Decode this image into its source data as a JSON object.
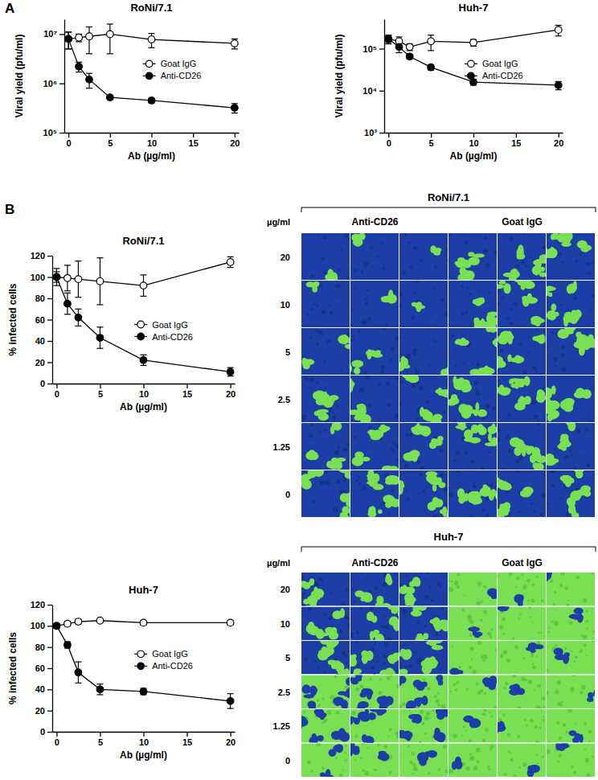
{
  "panel_labels": [
    "A",
    "B"
  ],
  "chart_data": [
    {
      "type": "line",
      "title": "RoNi/7.1",
      "x_label": "Ab (µg/ml)",
      "y_label": "Viral yield (pfu/ml)",
      "log": "y",
      "x": [
        0,
        1.25,
        2.5,
        5,
        10,
        20
      ],
      "xlim": [
        -0.5,
        20.5
      ],
      "xticks": [
        0,
        5,
        10,
        15,
        20
      ],
      "ylim": [
        100000,
        20000000
      ],
      "yticks": [
        {
          "value": 100000,
          "label": "10⁵"
        },
        {
          "value": 1000000,
          "label": "10⁶"
        },
        {
          "value": 10000000,
          "label": "10⁷"
        }
      ],
      "legend": "right",
      "series": [
        {
          "name": "Goat IgG",
          "color": "#000000",
          "marker": "open circle",
          "values": [
            8000000,
            8500000,
            9000000,
            10000000,
            7800000,
            6500000
          ],
          "errors": [
            3000000,
            1500000,
            5000000,
            6000000,
            2500000,
            1500000
          ]
        },
        {
          "name": "Anti-CD26",
          "color": "#000000",
          "marker": "filled circle",
          "values": [
            8000000,
            2200000,
            1200000,
            520000,
            450000,
            320000
          ],
          "errors": [
            3000000,
            500000,
            400000,
            50000,
            50000,
            70000
          ]
        }
      ]
    },
    {
      "type": "line",
      "title": "Huh-7",
      "x_label": "Ab (µg/ml)",
      "y_label": "Viral yield (pfu/ml)",
      "log": "y",
      "x": [
        0,
        1.25,
        2.5,
        5,
        10,
        20
      ],
      "xlim": [
        -0.5,
        20.5
      ],
      "xticks": [
        0,
        5,
        10,
        15,
        20
      ],
      "ylim": [
        1000,
        500000
      ],
      "yticks": [
        {
          "value": 1000,
          "label": "10³"
        },
        {
          "value": 10000,
          "label": "10⁴"
        },
        {
          "value": 100000,
          "label": "10⁵"
        }
      ],
      "legend": "right",
      "series": [
        {
          "name": "Goat IgG",
          "color": "#000000",
          "marker": "open circle",
          "values": [
            170000,
            150000,
            110000,
            150000,
            140000,
            280000
          ],
          "errors": [
            40000,
            40000,
            20000,
            60000,
            25000,
            80000
          ]
        },
        {
          "name": "Anti-CD26",
          "color": "#000000",
          "marker": "filled circle",
          "values": [
            170000,
            110000,
            65000,
            36000,
            16000,
            13500
          ],
          "errors": [
            30000,
            30000,
            8000,
            5000,
            2500,
            3000
          ]
        }
      ]
    },
    {
      "type": "line",
      "title": "RoNi/7.1",
      "x_label": "Ab (µg/ml)",
      "y_label": "% infected cells",
      "x": [
        0,
        1.25,
        2.5,
        5,
        10,
        20
      ],
      "xlim": [
        -0.5,
        20.5
      ],
      "xticks": [
        0,
        5,
        10,
        15,
        20
      ],
      "ylim": [
        0,
        120
      ],
      "yticks": [
        0,
        20,
        40,
        60,
        80,
        100,
        120
      ],
      "legend": "center right",
      "series": [
        {
          "name": "Goat IgG",
          "color": "#000000",
          "marker": "open circle",
          "values": [
            100,
            99,
            98,
            96,
            92,
            114
          ],
          "errors": [
            8,
            12,
            17,
            22,
            10,
            5
          ]
        },
        {
          "name": "Anti-CD26",
          "color": "#000000",
          "marker": "filled circle",
          "values": [
            100,
            75,
            62,
            43,
            22,
            11
          ],
          "errors": [
            5,
            10,
            8,
            10,
            5,
            4
          ]
        }
      ]
    },
    {
      "type": "line",
      "title": "Huh-7",
      "x_label": "Ab (µg/ml)",
      "y_label": "% infected cells",
      "x": [
        0,
        1.25,
        2.5,
        5,
        10,
        20
      ],
      "xlim": [
        -0.5,
        20.5
      ],
      "xticks": [
        0,
        5,
        10,
        15,
        20
      ],
      "ylim": [
        0,
        120
      ],
      "yticks": [
        0,
        20,
        40,
        60,
        80,
        100,
        120
      ],
      "legend": "right",
      "series": [
        {
          "name": "Goat IgG",
          "color": "#000000",
          "marker": "open circle",
          "values": [
            100,
            102,
            104,
            105,
            103,
            103
          ],
          "errors": [
            2,
            2,
            2,
            1,
            2,
            2
          ]
        },
        {
          "name": "Anti-CD26",
          "color": "#000000",
          "marker": "filled circle",
          "values": [
            100,
            82,
            56,
            40,
            38,
            29
          ],
          "errors": [
            2,
            3,
            10,
            5,
            3,
            7
          ]
        }
      ]
    }
  ],
  "image_grids": [
    {
      "title": "RoNi/7.1",
      "unit_label": "µg/ml",
      "row_labels": [
        20,
        10,
        5,
        2.5,
        1.25,
        0
      ],
      "column_groups": [
        "Anti-CD26",
        "Goat IgG"
      ]
    },
    {
      "title": "Huh-7",
      "unit_label": "µg/ml",
      "row_labels": [
        20,
        10,
        5,
        2.5,
        1.25,
        0
      ],
      "column_groups": [
        "Anti-CD26",
        "Goat IgG"
      ]
    }
  ]
}
